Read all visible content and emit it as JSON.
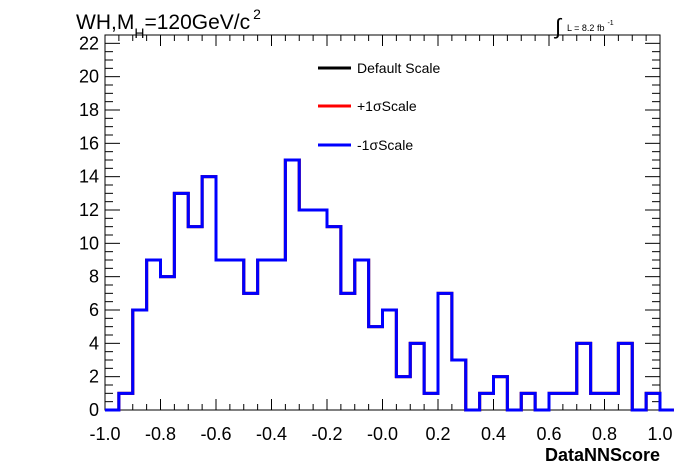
{
  "chart_data": {
    "type": "histogram-step",
    "title_main": "WH,M",
    "title_sub": "H",
    "title_rest": "=120GeV/c",
    "title_sup": "2",
    "lumi_integral": "∫",
    "lumi_text": "L = 8.2 fb",
    "lumi_sup": "-1",
    "xlabel": "DataNNScore",
    "xlim": [
      -1.0,
      1.0
    ],
    "ylim": [
      0,
      22.5
    ],
    "x_major_ticks": [
      -1.0,
      -0.8,
      -0.6,
      -0.4,
      -0.2,
      0.0,
      0.2,
      0.4,
      0.6,
      0.8,
      1.0
    ],
    "x_tick_labels": [
      "-1.0",
      "-0.8",
      "-0.6",
      "-0.4",
      "-0.2",
      "-0.0",
      "0.2",
      "0.4",
      "0.6",
      "0.8",
      "1.0"
    ],
    "y_major_ticks": [
      0,
      2,
      4,
      6,
      8,
      10,
      12,
      14,
      16,
      18,
      20,
      22
    ],
    "y_tick_labels": [
      "0",
      "2",
      "4",
      "6",
      "8",
      "10",
      "12",
      "14",
      "16",
      "18",
      "20",
      "22"
    ],
    "bin_edges_start": -1.0,
    "bin_width": 0.05,
    "series": [
      {
        "name": "Default Scale",
        "color": "#000000",
        "values": [
          0,
          1,
          6,
          9,
          8,
          13,
          11,
          14,
          9,
          9,
          7,
          9,
          9,
          15,
          12,
          12,
          11,
          7,
          9,
          5,
          6,
          2,
          4,
          1,
          7,
          3,
          0,
          1,
          2,
          0,
          1,
          0,
          1,
          1,
          4,
          1,
          1,
          4,
          0,
          1,
          0
        ]
      },
      {
        "name": "+1σScale",
        "color": "#ff0000",
        "values": [
          0,
          1,
          6,
          9,
          8,
          13,
          11,
          14,
          9,
          9,
          7,
          9,
          9,
          15,
          12,
          12,
          11,
          7,
          9,
          5,
          6,
          2,
          4,
          1,
          7,
          3,
          0,
          1,
          2,
          0,
          1,
          0,
          1,
          1,
          4,
          1,
          1,
          4,
          0,
          1,
          0
        ]
      },
      {
        "name": "-1σScale",
        "color": "#0000ff",
        "values": [
          0,
          1,
          6,
          9,
          8,
          13,
          11,
          14,
          9,
          9,
          7,
          9,
          9,
          15,
          12,
          12,
          11,
          7,
          9,
          5,
          6,
          2,
          4,
          1,
          7,
          3,
          0,
          1,
          2,
          0,
          1,
          0,
          1,
          1,
          4,
          1,
          1,
          4,
          0,
          1,
          0
        ]
      }
    ],
    "legend_position": "top-center",
    "grid": false
  }
}
